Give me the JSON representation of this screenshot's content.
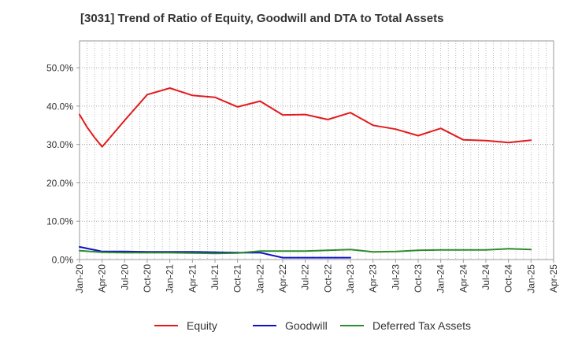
{
  "chart_data": {
    "type": "line",
    "title": "[3031]  Trend of Ratio of Equity, Goodwill and DTA to Total Assets",
    "xlabel": "",
    "ylabel": "",
    "ylim": [
      0,
      57
    ],
    "yticks": [
      0,
      10,
      20,
      30,
      40,
      50
    ],
    "ytick_labels": [
      "0.0%",
      "10.0%",
      "20.0%",
      "30.0%",
      "40.0%",
      "50.0%"
    ],
    "x_start": "2020-01",
    "x_end_months": 63,
    "xticks": [
      0,
      3,
      6,
      9,
      12,
      15,
      18,
      21,
      24,
      27,
      30,
      33,
      36,
      39,
      42,
      45,
      48,
      51,
      54,
      57,
      60,
      63
    ],
    "xtick_labels": [
      "Jan-20",
      "Apr-20",
      "Jul-20",
      "Oct-20",
      "Jan-21",
      "Apr-21",
      "Jul-21",
      "Oct-21",
      "Jan-22",
      "Apr-22",
      "Jul-22",
      "Oct-22",
      "Jan-23",
      "Apr-23",
      "Jul-23",
      "Oct-23",
      "Jan-24",
      "Apr-24",
      "Jul-24",
      "Oct-24",
      "Jan-25",
      "Apr-25"
    ],
    "grid": true,
    "legend_position": "bottom",
    "series": [
      {
        "name": "Equity",
        "color": "#e31a1c",
        "x": [
          0,
          1,
          2,
          3,
          6,
          9,
          12,
          15,
          18,
          21,
          24,
          27,
          30,
          33,
          36,
          39,
          42,
          45,
          48,
          51,
          54,
          57,
          60
        ],
        "values": [
          37.8,
          34.5,
          31.8,
          29.4,
          36.3,
          43.0,
          44.7,
          42.8,
          42.3,
          39.8,
          41.3,
          37.7,
          37.8,
          36.5,
          38.3,
          35.0,
          34.0,
          32.3,
          34.2,
          31.2,
          31.0,
          30.5,
          31.1
        ]
      },
      {
        "name": "Goodwill",
        "color": "#1010c8",
        "x": [
          0,
          3,
          6,
          9,
          12,
          15,
          18,
          21,
          24,
          27,
          30,
          33,
          36
        ],
        "values": [
          3.3,
          2.1,
          2.1,
          2.0,
          2.0,
          2.0,
          1.9,
          1.8,
          1.8,
          0.5,
          0.5,
          0.5,
          0.5
        ]
      },
      {
        "name": "Deferred Tax Assets",
        "color": "#2e8b2e",
        "x": [
          0,
          3,
          6,
          9,
          12,
          15,
          18,
          21,
          24,
          27,
          30,
          33,
          36,
          39,
          42,
          45,
          48,
          51,
          54,
          57,
          60
        ],
        "values": [
          2.3,
          1.9,
          1.8,
          1.8,
          1.8,
          1.7,
          1.6,
          1.7,
          2.2,
          2.2,
          2.2,
          2.4,
          2.6,
          2.0,
          2.1,
          2.4,
          2.5,
          2.5,
          2.5,
          2.8,
          2.6
        ]
      }
    ]
  }
}
